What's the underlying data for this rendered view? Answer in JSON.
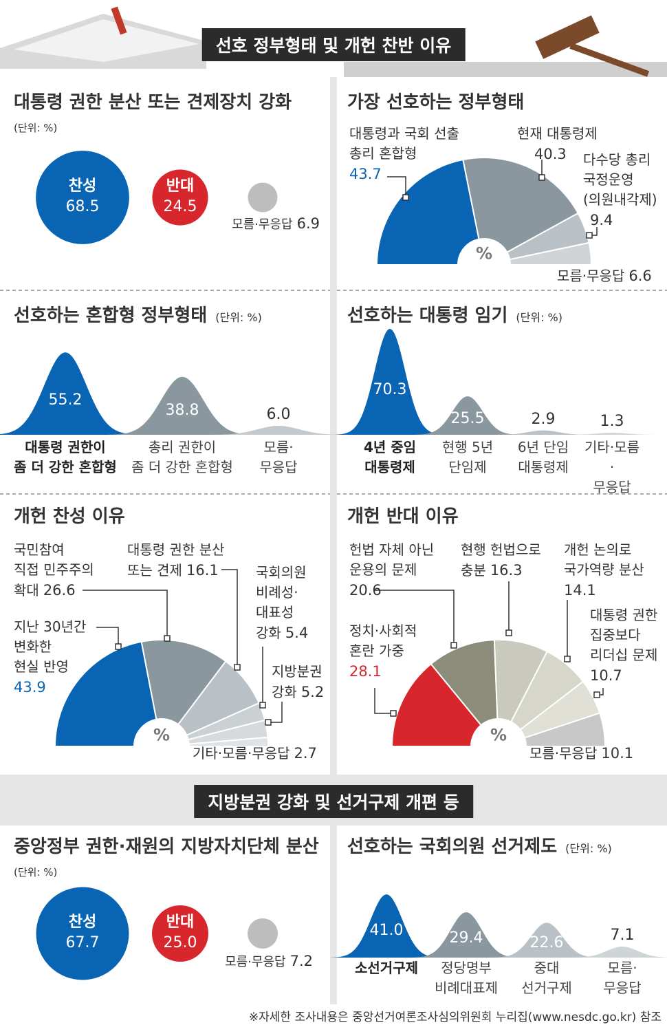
{
  "header": {
    "title": "선호 정부형태 및 개헌 찬반 이유"
  },
  "chart_data": [
    {
      "type": "circles",
      "title": "대통령 권한 분산 또는 견제장치 강화",
      "subtitle": "(단위: %)",
      "categories": [
        "찬성",
        "반대",
        "모름·무응답"
      ],
      "values": [
        68.5,
        24.5,
        6.9
      ],
      "colors": [
        "#0a64b4",
        "#d7272c",
        "#bdbdbd"
      ]
    },
    {
      "type": "semipie",
      "title": "가장 선호하는 정부형태",
      "center_label": "%",
      "categories": [
        "대통령과 국회 선출\n총리 혼합형",
        "현재 대통령제",
        "다수당 총리\n국정운영\n(의원내각제)",
        "모름·무응답"
      ],
      "values": [
        43.7,
        40.3,
        9.4,
        6.6
      ],
      "colors": [
        "#0a64b4",
        "#8a979f",
        "#b9c1c6",
        "#d0d4d7"
      ]
    },
    {
      "type": "bell",
      "title": "선호하는 혼합형 정부형태",
      "subtitle": "(단위: %)",
      "categories": [
        "대통령 권한이\n좀 더 강한 혼합형",
        "총리 권한이\n좀 더 강한 혼합형",
        "모름·\n무응답"
      ],
      "values": [
        55.2,
        38.8,
        6.0
      ],
      "value_labels": [
        "55.2",
        "38.8",
        "6.0"
      ],
      "colors": [
        "#0a64b4",
        "#8a979f",
        "#c3c9cd"
      ]
    },
    {
      "type": "bell",
      "title": "선호하는 대통령 임기",
      "subtitle": "(단위: %)",
      "categories": [
        "4년 중임\n대통령제",
        "현행 5년\n단임제",
        "6년 단임\n대통령제",
        "기타·모름·\n무응답"
      ],
      "values": [
        70.3,
        25.5,
        2.9,
        1.3
      ],
      "colors": [
        "#0a64b4",
        "#8a979f",
        "#b9c1c6",
        "#cfd4d7"
      ]
    },
    {
      "type": "semipie",
      "title": "개헌 찬성 이유",
      "center_label": "%",
      "categories": [
        "지난 30년간\n변화한\n현실 반영",
        "국민참여\n직접 민주주의\n확대",
        "대통령 권한 분산\n또는 견제",
        "국회의원\n비례성·\n대표성\n강화",
        "지방분권\n강화",
        "기타·모름·무응답"
      ],
      "values": [
        43.9,
        26.6,
        16.1,
        5.4,
        5.2,
        2.7
      ],
      "colors": [
        "#0a64b4",
        "#8a979f",
        "#b9c1c6",
        "#cbd0d3",
        "#d6dadc",
        "#e0e3e5"
      ]
    },
    {
      "type": "semipie",
      "title": "개헌 반대 이유",
      "center_label": "%",
      "categories": [
        "정치·사회적\n혼란 가중",
        "헌법 자체 아닌\n운용의 문제",
        "현행 헌법으로\n충분",
        "개헌 논의로\n국가역량 분산",
        "대통령 권한\n집중보다\n리더십 문제",
        "모름·무응답"
      ],
      "values": [
        28.1,
        20.6,
        16.3,
        14.1,
        10.7,
        10.1
      ],
      "colors": [
        "#d7272c",
        "#8c8c7b",
        "#c9c9bd",
        "#d6d6cb",
        "#e0e0d7",
        "#c8c8c8"
      ]
    },
    {
      "type": "circles",
      "title": "중앙정부 권한·재원의 지방자치단체 분산",
      "subtitle": "(단위: %)",
      "categories": [
        "찬성",
        "반대",
        "모름·무응답"
      ],
      "values": [
        67.7,
        25.0,
        7.2
      ],
      "value_labels": [
        "67.7",
        "25.0",
        "7.2"
      ],
      "colors": [
        "#0a64b4",
        "#d7272c",
        "#bdbdbd"
      ]
    },
    {
      "type": "bell",
      "title": "선호하는 국회의원 선거제도",
      "subtitle": "(단위: %)",
      "categories": [
        "소선거구제",
        "정당명부\n비례대표제",
        "중대\n선거구제",
        "모름·\n무응답"
      ],
      "values": [
        41.0,
        29.4,
        22.6,
        7.1
      ],
      "value_labels": [
        "41.0",
        "29.4",
        "22.6",
        "7.1"
      ],
      "colors": [
        "#0a64b4",
        "#8a979f",
        "#b9c1c6",
        "#cfd4d7"
      ]
    }
  ],
  "section2": {
    "title": "지방분권 강화 및 선거구제 개편 등"
  },
  "footnote": "※자세한 조사내용은 중앙선거여론조사심의위원회 누리집(www.nesdc.go.kr) 참조"
}
